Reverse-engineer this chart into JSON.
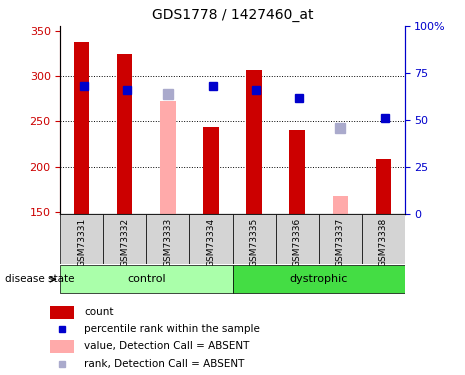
{
  "title": "GDS1778 / 1427460_at",
  "samples": [
    "GSM73331",
    "GSM73332",
    "GSM73333",
    "GSM73334",
    "GSM73335",
    "GSM73336",
    "GSM73337",
    "GSM73338"
  ],
  "ylim_left": [
    148,
    355
  ],
  "ylim_right": [
    0,
    100
  ],
  "yticks_left": [
    150,
    200,
    250,
    300,
    350
  ],
  "yticks_right": [
    0,
    25,
    50,
    75,
    100
  ],
  "bar_color_present": "#cc0000",
  "bar_color_absent": "#ffaaaa",
  "dot_color_present": "#0000cc",
  "dot_color_absent": "#aaaacc",
  "bar_width": 0.35,
  "count_values": [
    338,
    324,
    null,
    244,
    307,
    240,
    null,
    208
  ],
  "absent_bar_values": [
    null,
    null,
    272,
    null,
    null,
    null,
    168,
    null
  ],
  "percentile_values": [
    68,
    66,
    null,
    68,
    66,
    62,
    null,
    51
  ],
  "absent_rank_values": [
    null,
    null,
    64,
    null,
    null,
    null,
    46,
    null
  ],
  "control_color": "#aaffaa",
  "dystrophic_color": "#44dd44",
  "left_axis_color": "#cc0000",
  "right_axis_color": "#0000cc",
  "grid_dotted_values": [
    200,
    250,
    300
  ],
  "xlabel_bg_color": "#d4d4d4"
}
